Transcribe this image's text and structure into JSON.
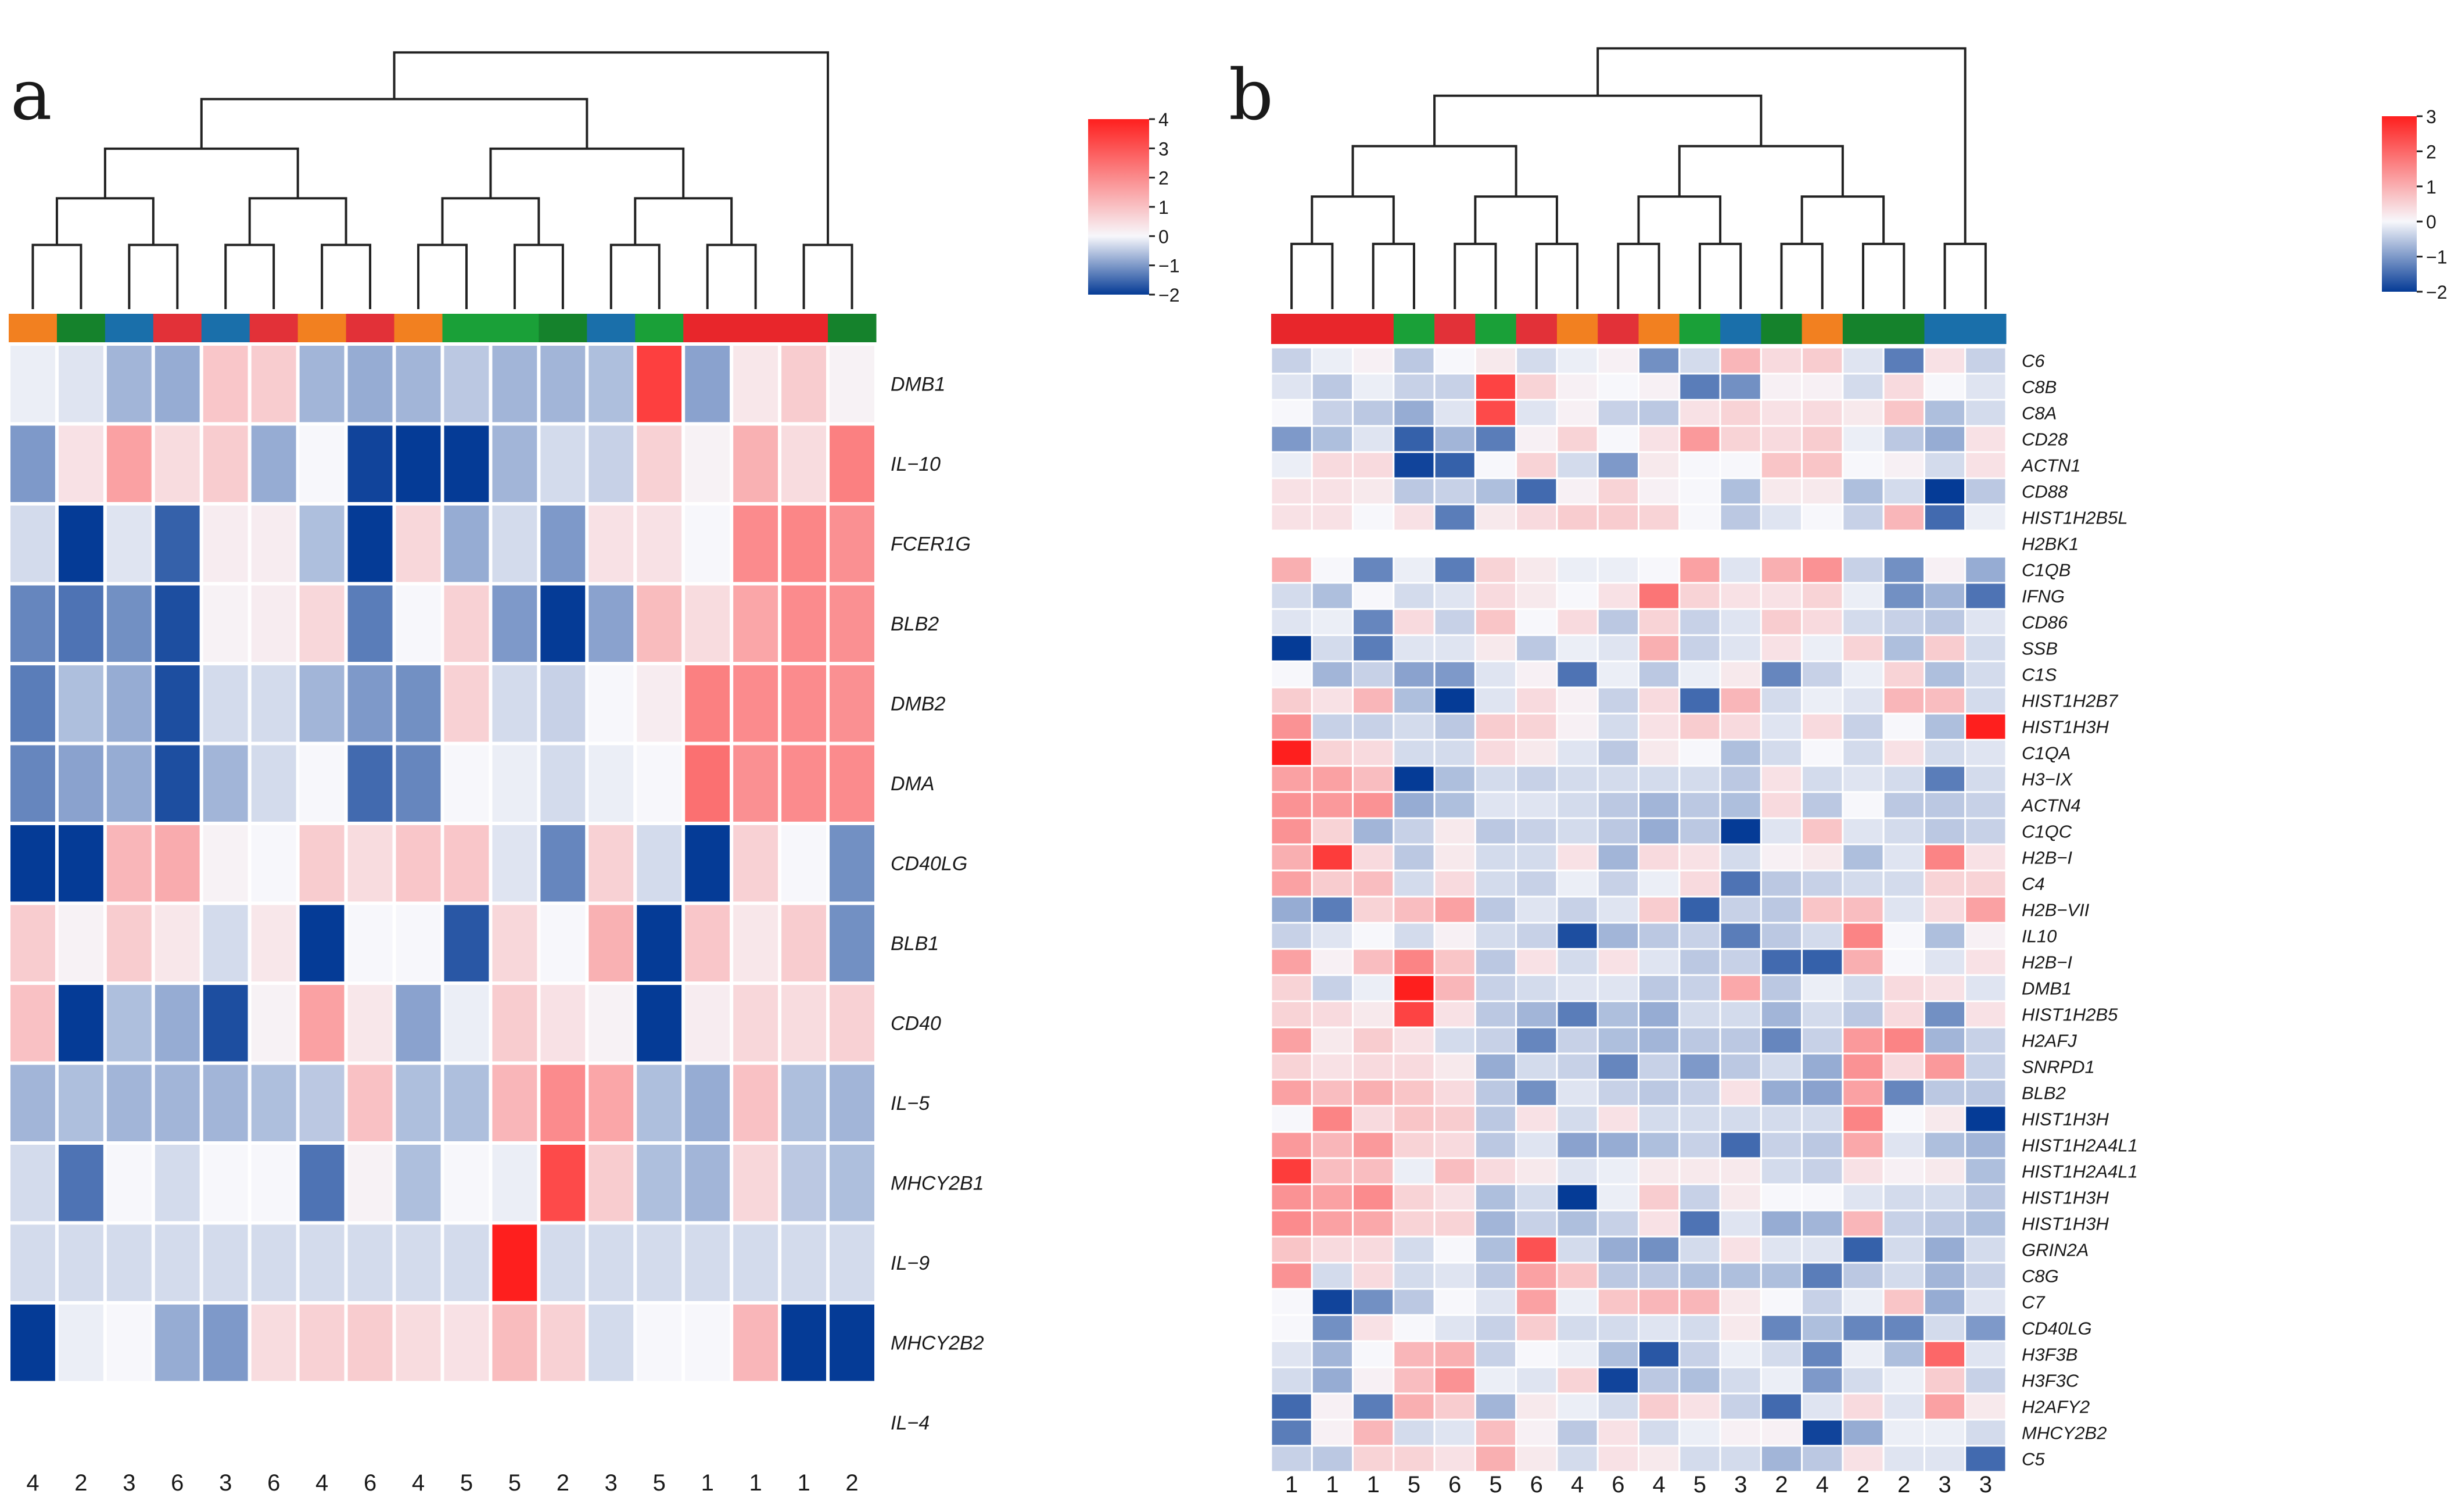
{
  "colors": {
    "low": "#053b96",
    "mid": "#f7f7fb",
    "high": "#fe1f1e",
    "group": {
      "1": "#e8262b",
      "2": "#15822c",
      "3": "#1a6faa",
      "4": "#f28020",
      "5": "#1aa038",
      "6": "#e23138"
    }
  },
  "chart_data": [
    {
      "type": "heatmap",
      "panel_label": "a",
      "col_labels": [
        "4",
        "2",
        "3",
        "6",
        "3",
        "6",
        "4",
        "6",
        "4",
        "5",
        "5",
        "2",
        "3",
        "5",
        "1",
        "1",
        "1",
        "2"
      ],
      "col_groups": [
        "4",
        "2",
        "3",
        "6",
        "3",
        "6",
        "4",
        "6",
        "4",
        "5",
        "5",
        "2",
        "3",
        "5",
        "1",
        "1",
        "1",
        "2"
      ],
      "row_labels": [
        "DMB1",
        "IL−10",
        "FCER1G",
        "BLB2",
        "DMB2",
        "DMA",
        "CD40LG",
        "BLB1",
        "CD40",
        "IL−5",
        "MHCY2B1",
        "IL−9",
        "MHCY2B2",
        "IL−4"
      ],
      "values": [
        [
          -0.1,
          -0.2,
          -0.7,
          -0.8,
          0.9,
          0.8,
          -0.7,
          -0.8,
          -0.7,
          -0.5,
          -0.7,
          -0.7,
          -0.6,
          3.4,
          -0.9,
          0.3,
          0.8,
          0.1
        ],
        [
          -1.0,
          0.4,
          1.6,
          0.5,
          0.8,
          -0.8,
          0,
          -1.9,
          -2.5,
          -2.4,
          -0.7,
          -0.3,
          -0.4,
          0.7,
          0.1,
          1.3,
          0.5,
          2.2
        ],
        [
          -0.3,
          -2.3,
          -0.2,
          -1.6,
          0.2,
          0.2,
          -0.6,
          -2.5,
          0.6,
          -0.8,
          -0.3,
          -1.0,
          0.4,
          0.4,
          0,
          2.0,
          2.1,
          1.9
        ],
        [
          -1.2,
          -1.4,
          -1.1,
          -1.8,
          0.1,
          0.2,
          0.6,
          -1.3,
          0,
          0.7,
          -1.0,
          -2.2,
          -0.9,
          1.1,
          0.5,
          1.5,
          2.0,
          1.9
        ],
        [
          -1.3,
          -0.6,
          -0.8,
          -1.8,
          -0.3,
          -0.3,
          -0.7,
          -1.0,
          -1.1,
          0.7,
          -0.3,
          -0.4,
          0,
          0.2,
          2.2,
          2.0,
          2.0,
          1.9
        ],
        [
          -1.2,
          -0.9,
          -0.8,
          -1.8,
          -0.7,
          -0.3,
          0,
          -1.5,
          -1.2,
          0,
          -0.1,
          -0.3,
          -0.1,
          0,
          2.5,
          1.9,
          2.0,
          2.0
        ],
        [
          -2.5,
          -2.3,
          1.2,
          1.4,
          0.1,
          0,
          0.8,
          0.5,
          0.9,
          0.9,
          -0.2,
          -1.2,
          0.7,
          -0.3,
          -2.6,
          0.7,
          0,
          -1.1
        ],
        [
          0.8,
          0.1,
          0.8,
          0.3,
          -0.3,
          0.3,
          -2.6,
          0,
          0,
          -1.7,
          0.6,
          0,
          1.3,
          -2.6,
          0.9,
          0.3,
          0.8,
          -1.1
        ],
        [
          1.0,
          -2.5,
          -0.6,
          -0.8,
          -1.8,
          0.1,
          1.6,
          0.3,
          -0.9,
          -0.1,
          0.8,
          0.4,
          0.1,
          -2.6,
          0.2,
          0.6,
          0.5,
          0.7
        ],
        [
          -0.7,
          -0.6,
          -0.7,
          -0.7,
          -0.7,
          -0.6,
          -0.5,
          1.0,
          -0.6,
          -0.6,
          1.2,
          2.0,
          1.5,
          -0.6,
          -0.8,
          1.0,
          -0.6,
          -0.7
        ],
        [
          -0.3,
          -1.4,
          0,
          -0.3,
          0,
          0,
          -1.4,
          0.1,
          -0.6,
          0,
          -0.1,
          3.2,
          0.8,
          -0.6,
          -0.7,
          0.6,
          -0.5,
          -0.6
        ],
        [
          -0.3,
          -0.3,
          -0.3,
          -0.3,
          -0.3,
          -0.3,
          -0.3,
          -0.3,
          -0.3,
          -0.3,
          4.0,
          -0.3,
          -0.3,
          -0.3,
          -0.3,
          -0.3,
          -0.3,
          -0.3
        ],
        [
          -2.6,
          -0.1,
          0,
          -0.8,
          -1.0,
          0.5,
          0.7,
          0.8,
          0.5,
          0.4,
          1.1,
          0.7,
          -0.3,
          0,
          0,
          1.2,
          -2.0,
          -2.0
        ],
        [
          null,
          null,
          null,
          null,
          null,
          null,
          null,
          null,
          null,
          null,
          null,
          null,
          null,
          null,
          null,
          null,
          null,
          null
        ]
      ],
      "color_scale": {
        "min": -2,
        "max": 4,
        "ticks": [
          "4",
          "3",
          "2",
          "1",
          "0",
          "−1",
          "−2"
        ]
      }
    },
    {
      "type": "heatmap",
      "panel_label": "b",
      "col_labels": [
        "1",
        "1",
        "1",
        "5",
        "6",
        "5",
        "6",
        "4",
        "6",
        "4",
        "5",
        "3",
        "2",
        "4",
        "2",
        "2",
        "3",
        "3"
      ],
      "col_groups": [
        "1",
        "1",
        "1",
        "5",
        "6",
        "5",
        "6",
        "4",
        "6",
        "4",
        "5",
        "3",
        "2",
        "4",
        "2",
        "2",
        "3",
        "3"
      ],
      "row_labels": [
        "C6",
        "C8B",
        "C8A",
        "CD28",
        "ACTN1",
        "CD88",
        "HIST1H2B5L",
        "H2BK1",
        "C1QB",
        "IFNG",
        "CD86",
        "SSB",
        "C1S",
        "HIST1H2B7",
        "HIST1H3H",
        "C1QA",
        "H3−IX",
        "ACTN4",
        "C1QC",
        "H2B−I",
        "C4",
        "H2B−VII",
        "IL10",
        "H2B−I",
        "DMB1",
        "HIST1H2B5",
        "H2AFJ",
        "SNRPD1",
        "BLB2",
        "HIST1H3H",
        "HIST1H2A4L1",
        "HIST1H2A4L1",
        "HIST1H3H",
        "HIST1H3H",
        "GRIN2A",
        "C8G",
        "C7",
        "CD40LG",
        "H3F3B",
        "H3F3C",
        "H2AFY2",
        "MHCY2B2",
        "C5"
      ],
      "values": [
        [
          -0.4,
          -0.1,
          0.1,
          -0.5,
          0,
          0.2,
          -0.3,
          -0.1,
          0.1,
          -1.1,
          -0.3,
          0.9,
          0.4,
          0.6,
          -0.2,
          -1.3,
          0.3,
          -0.4
        ],
        [
          -0.2,
          -0.5,
          -0.1,
          -0.4,
          -0.4,
          2.5,
          0.5,
          0.1,
          0,
          0.1,
          -1.3,
          -1.1,
          0.1,
          0.1,
          -0.3,
          0.4,
          0,
          -0.2
        ],
        [
          0,
          -0.4,
          -0.5,
          -0.8,
          -0.2,
          2.4,
          -0.2,
          0.1,
          -0.4,
          -0.5,
          0.3,
          0.5,
          0.3,
          0.4,
          0.2,
          0.7,
          -0.6,
          -0.3
        ],
        [
          -1.0,
          -0.6,
          -0.2,
          -1.6,
          -0.7,
          -1.3,
          0.1,
          0.5,
          0,
          0.3,
          1.3,
          0.5,
          0.4,
          0.6,
          -0.1,
          -0.5,
          -0.8,
          0.3
        ],
        [
          -0.1,
          0.4,
          0.4,
          -1.9,
          -1.6,
          0,
          0.5,
          -0.3,
          -1.0,
          0.2,
          0,
          0,
          0.7,
          0.7,
          0,
          0.1,
          -0.3,
          0.3
        ],
        [
          0.3,
          0.3,
          0.2,
          -0.5,
          -0.4,
          -0.6,
          -1.5,
          0.1,
          0.5,
          0.1,
          0,
          -0.6,
          0.2,
          0.2,
          -0.6,
          -0.3,
          -2.0,
          -0.5
        ],
        [
          0.3,
          0.3,
          0,
          0.3,
          -1.3,
          0.2,
          0.4,
          0.6,
          0.6,
          0.5,
          0,
          -0.5,
          -0.2,
          0,
          -0.4,
          0.9,
          -1.5,
          -0.1
        ],
        [
          null,
          null,
          null,
          null,
          null,
          null,
          null,
          null,
          null,
          null,
          null,
          null,
          null,
          null,
          null,
          null,
          null,
          null
        ],
        [
          1.0,
          0,
          -1.2,
          -0.1,
          -1.3,
          0.5,
          0.2,
          -0.1,
          -0.1,
          0,
          1.2,
          -0.2,
          1.0,
          1.4,
          -0.4,
          -1.1,
          0.1,
          -0.8
        ],
        [
          -0.3,
          -0.6,
          0,
          -0.3,
          -0.2,
          0.4,
          0.2,
          0,
          0.3,
          1.8,
          0.5,
          0.3,
          0.3,
          0.5,
          -0.1,
          -1.1,
          -0.7,
          -1.4
        ],
        [
          -0.2,
          -0.1,
          -1.2,
          0.4,
          -0.4,
          0.7,
          0,
          0.4,
          -0.5,
          0.5,
          -0.4,
          -0.2,
          0.6,
          0.4,
          -0.3,
          -0.4,
          -0.5,
          -0.2
        ],
        [
          -2.2,
          -0.3,
          -1.3,
          -0.2,
          -0.2,
          0.2,
          -0.5,
          -0.1,
          -0.2,
          1.0,
          -0.4,
          -0.2,
          0.3,
          -0.1,
          0.5,
          -0.6,
          0.6,
          -0.3
        ],
        [
          0,
          -0.7,
          -0.4,
          -0.9,
          -1.0,
          -0.2,
          0.1,
          -1.4,
          -0.1,
          -0.5,
          -0.1,
          0.2,
          -1.2,
          -0.4,
          -0.1,
          0.5,
          -0.6,
          -0.3
        ],
        [
          0.6,
          0.3,
          0.9,
          -0.6,
          -2.3,
          -0.2,
          0.4,
          0.1,
          -0.4,
          0.4,
          -1.5,
          0.9,
          -0.3,
          -0.1,
          -0.2,
          0.9,
          0.8,
          -0.3
        ],
        [
          1.4,
          -0.4,
          -0.4,
          -0.3,
          -0.5,
          0.6,
          0.5,
          0.1,
          -0.3,
          0.3,
          0.6,
          0.4,
          -0.2,
          0.4,
          -0.4,
          0,
          -0.6,
          3.2
        ],
        [
          3.2,
          0.5,
          0.4,
          -0.3,
          -0.3,
          0.4,
          0.2,
          -0.2,
          -0.5,
          0.2,
          0,
          -0.6,
          -0.3,
          0,
          -0.3,
          0.3,
          -0.3,
          -0.2
        ],
        [
          1.2,
          1.2,
          0.8,
          -2.1,
          -0.6,
          -0.3,
          -0.4,
          -0.3,
          -0.3,
          -0.3,
          -0.3,
          -0.5,
          0.3,
          -0.3,
          -0.2,
          -0.3,
          -1.3,
          -0.3
        ],
        [
          1.4,
          1.3,
          1.4,
          -0.8,
          -0.6,
          -0.2,
          -0.2,
          -0.3,
          -0.5,
          -0.7,
          -0.5,
          -0.6,
          0.4,
          -0.5,
          0,
          -0.5,
          -0.5,
          -0.4
        ],
        [
          1.4,
          0.5,
          -0.7,
          -0.4,
          0.2,
          -0.5,
          -0.4,
          -0.3,
          -0.5,
          -0.8,
          -0.5,
          -2.1,
          -0.2,
          0.7,
          -0.2,
          -0.3,
          -0.5,
          -0.4
        ],
        [
          1.0,
          2.6,
          0.4,
          -0.5,
          0.2,
          -0.3,
          -0.3,
          0.3,
          -0.7,
          0.4,
          0.3,
          -0.3,
          0.1,
          0.2,
          -0.6,
          -0.2,
          1.6,
          0.3
        ],
        [
          1.2,
          0.6,
          0.8,
          -0.3,
          0.4,
          -0.3,
          -0.4,
          -0.1,
          -0.4,
          -0.1,
          0.4,
          -1.4,
          -0.5,
          -0.4,
          -0.3,
          -0.3,
          0.5,
          0.5
        ],
        [
          -0.8,
          -1.3,
          0.5,
          0.8,
          1.2,
          -0.5,
          -0.2,
          -0.4,
          -0.2,
          0.6,
          -1.6,
          -0.4,
          -0.5,
          0.7,
          0.8,
          -0.2,
          0.4,
          1.2
        ],
        [
          -0.4,
          -0.2,
          0,
          -0.3,
          0.1,
          -0.3,
          -0.4,
          -1.8,
          -0.7,
          -0.5,
          -0.4,
          -1.3,
          -0.5,
          -0.3,
          1.6,
          0,
          -0.6,
          0.1
        ],
        [
          1.2,
          0.1,
          0.8,
          1.6,
          0.7,
          -0.5,
          0.3,
          -0.3,
          0.3,
          -0.2,
          -0.5,
          -0.4,
          -1.5,
          -1.6,
          1.0,
          0,
          -0.2,
          0.3
        ],
        [
          0.5,
          -0.4,
          -0.1,
          3.2,
          0.9,
          -0.4,
          -0.3,
          -0.2,
          -0.2,
          -0.5,
          -0.4,
          1.1,
          -0.5,
          -0.1,
          -0.3,
          0.4,
          0.3,
          -0.2
        ],
        [
          0.5,
          0.4,
          0.2,
          2.5,
          0.3,
          -0.5,
          -0.7,
          -1.3,
          -0.6,
          -0.8,
          -0.3,
          -0.3,
          -0.7,
          -0.3,
          -0.5,
          0.4,
          -1.1,
          0.3
        ],
        [
          1.2,
          0.2,
          0.6,
          0.3,
          -0.3,
          -0.4,
          -1.2,
          -0.4,
          -0.6,
          -0.7,
          -0.5,
          -0.5,
          -1.2,
          -0.4,
          1.3,
          1.6,
          -0.7,
          -0.4
        ],
        [
          0.5,
          0.3,
          0.4,
          0.4,
          0.2,
          -0.8,
          -0.3,
          -0.4,
          -1.2,
          -0.4,
          -1.0,
          -0.5,
          -0.3,
          -0.8,
          1.4,
          0.4,
          1.3,
          -0.4
        ],
        [
          1.2,
          0.8,
          1.0,
          0.7,
          0.4,
          -0.5,
          -1.1,
          -0.2,
          -0.4,
          -0.5,
          -0.4,
          0.3,
          -0.8,
          -0.9,
          1.2,
          -1.2,
          -0.5,
          -0.5
        ],
        [
          0,
          1.6,
          0.4,
          0.7,
          0.6,
          -0.5,
          0.3,
          -0.3,
          0.3,
          -0.3,
          -0.3,
          -0.3,
          -0.3,
          -0.3,
          1.6,
          0,
          0.2,
          -2.3
        ],
        [
          1.3,
          0.9,
          1.3,
          0.5,
          0.4,
          -0.5,
          -0.2,
          -0.9,
          -0.8,
          -0.6,
          -0.4,
          -1.5,
          -0.4,
          -0.5,
          1.1,
          -0.2,
          -0.6,
          -0.7
        ],
        [
          2.6,
          0.8,
          0.8,
          -0.1,
          0.8,
          0.4,
          0.2,
          -0.2,
          -0.1,
          0.2,
          0.2,
          0.2,
          -0.3,
          -0.4,
          0.3,
          0.1,
          0.2,
          -0.6
        ],
        [
          1.4,
          1.2,
          1.5,
          0.5,
          0.3,
          -0.6,
          -0.3,
          -2.0,
          -0.1,
          0.6,
          -0.4,
          0.2,
          0,
          0,
          -0.2,
          -0.3,
          -0.3,
          -0.5
        ],
        [
          1.5,
          1.2,
          1.1,
          0.5,
          0.5,
          -0.7,
          -0.4,
          -0.6,
          -0.4,
          0.3,
          -1.4,
          -0.2,
          -0.8,
          -0.7,
          0.9,
          -0.4,
          -0.5,
          -0.6
        ],
        [
          0.7,
          0.4,
          0.4,
          -0.3,
          0,
          -0.6,
          2.3,
          -0.3,
          -0.8,
          -1.1,
          -0.3,
          0.3,
          -0.2,
          -0.2,
          -1.6,
          -0.3,
          -0.8,
          -0.3
        ],
        [
          1.4,
          -0.3,
          0.4,
          -0.3,
          -0.2,
          -0.5,
          1.2,
          0.7,
          -0.5,
          -0.5,
          -0.6,
          -0.6,
          -0.6,
          -1.3,
          -0.5,
          -0.3,
          -0.7,
          -0.4
        ],
        [
          0,
          -1.9,
          -1.1,
          -0.5,
          0,
          -0.2,
          1.2,
          -0.1,
          0.7,
          0.9,
          0.9,
          0.2,
          0,
          -0.4,
          -0.1,
          0.7,
          -0.8,
          -0.2
        ],
        [
          0,
          -1.1,
          0.3,
          0,
          -0.2,
          -0.4,
          0.6,
          -0.3,
          -0.3,
          -0.2,
          -0.3,
          0.2,
          -1.2,
          -0.6,
          -1.2,
          -1.2,
          -0.3,
          -1.0
        ],
        [
          -0.2,
          -0.7,
          0,
          0.9,
          1.0,
          -0.4,
          0,
          -0.1,
          -0.6,
          -1.7,
          -0.4,
          -0.1,
          -0.3,
          -1.2,
          -0.1,
          -0.6,
          2.0,
          -0.2
        ],
        [
          -0.3,
          -0.8,
          0.1,
          0.8,
          1.4,
          -0.1,
          -0.2,
          0.5,
          -1.9,
          -0.5,
          -0.6,
          -0.3,
          -0.1,
          -1.0,
          -0.3,
          -0.1,
          0.6,
          -0.4
        ],
        [
          -1.5,
          0.1,
          -1.3,
          1.0,
          0.6,
          -0.7,
          0.2,
          -0.1,
          -0.3,
          0.6,
          0.3,
          -0.4,
          -1.5,
          -0.2,
          0.4,
          -0.2,
          1.2,
          0.2
        ],
        [
          -1.3,
          0.1,
          0.9,
          -0.3,
          -0.2,
          0.8,
          0.1,
          -0.5,
          0.3,
          -0.3,
          -0.1,
          0.1,
          0.1,
          -1.9,
          -0.8,
          -0.1,
          -0.1,
          -0.3
        ],
        [
          -0.4,
          -0.5,
          0.5,
          0.5,
          0.3,
          1.0,
          0.2,
          -0.3,
          0.3,
          0.2,
          -0.3,
          -0.3,
          -0.7,
          -0.5,
          0.3,
          -0.2,
          -0.2,
          -1.5
        ]
      ],
      "color_scale": {
        "min": -2,
        "max": 3,
        "ticks": [
          "3",
          "2",
          "1",
          "0",
          "−1",
          "−2"
        ]
      }
    }
  ]
}
